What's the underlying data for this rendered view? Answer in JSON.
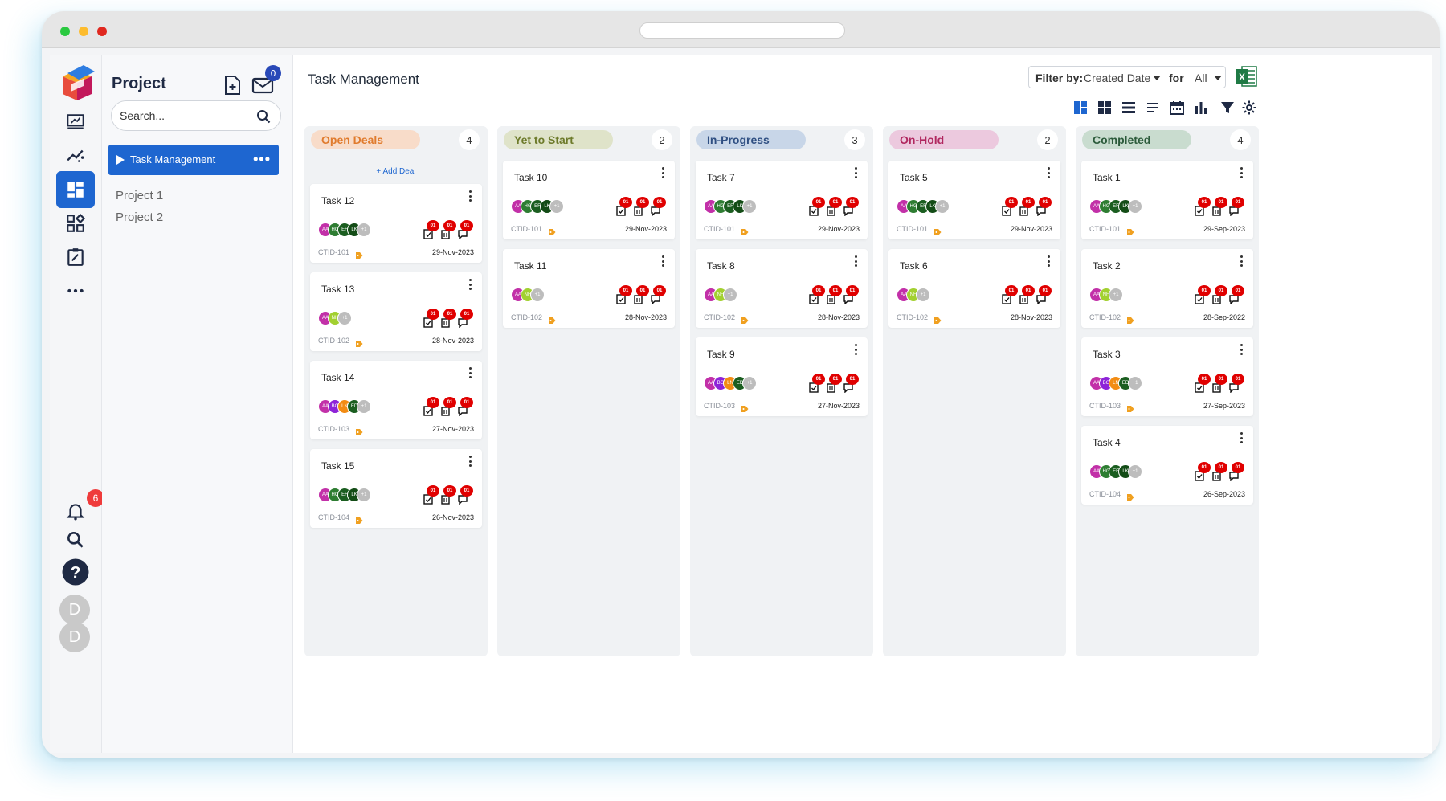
{
  "colors": {
    "accent": "#1e66d0",
    "badge_red": "#e00000",
    "mail_badge": "#2949b8",
    "excel_green": "#1f7a45"
  },
  "rail": {
    "icons": [
      "app-logo",
      "monitor-icon",
      "analytics-icon",
      "dashboard-icon",
      "widgets-icon",
      "task-edit-icon",
      "more-icon"
    ],
    "notification_count": "6",
    "users": [
      {
        "initial": "D"
      },
      {
        "initial": "D"
      }
    ]
  },
  "project_panel": {
    "title": "Project",
    "mail_count": "0",
    "search_placeholder": "Search...",
    "active_item": "Task Management",
    "items": [
      "Project 1",
      "Project 2"
    ]
  },
  "main": {
    "title": "Task Management",
    "filter": {
      "label": "Filter by:",
      "value": "Created Date",
      "for_label": "for",
      "for_value": "All"
    },
    "views": [
      "kanban-view-icon",
      "grid-view-icon",
      "list-view-icon",
      "compact-list-icon",
      "calendar-icon",
      "chart-icon",
      "filter-icon",
      "settings-icon"
    ]
  },
  "board": {
    "add_deal_label": "+ Add Deal",
    "columns": [
      {
        "name": "Open Deals",
        "count": "4",
        "pill_bg": "#f8dcc9",
        "pill_fg": "#e07b2d",
        "cards": [
          {
            "title": "Task 12",
            "ctid": "CTID-101",
            "date": "29-Nov-2023",
            "badges": [
              "01",
              "01",
              "01"
            ],
            "avatars": [
              [
                "AA",
                "#c230a8"
              ],
              [
                "HG",
                "#2e7d32"
              ],
              [
                "EF",
                "#1b5e20"
              ],
              [
                "LK",
                "#134c16"
              ],
              [
                "+1",
                "#bdbdbd"
              ]
            ]
          },
          {
            "title": "Task 13",
            "ctid": "CTID-102",
            "date": "28-Nov-2023",
            "badges": [
              "01",
              "01",
              "01"
            ],
            "avatars": [
              [
                "AA",
                "#c230a8"
              ],
              [
                "NH",
                "#a2d030"
              ],
              [
                "+1",
                "#bdbdbd"
              ]
            ]
          },
          {
            "title": "Task 14",
            "ctid": "CTID-103",
            "date": "27-Nov-2023",
            "badges": [
              "01",
              "01",
              "01"
            ],
            "avatars": [
              [
                "AA",
                "#c230a8"
              ],
              [
                "BG",
                "#8e24d8"
              ],
              [
                "LN",
                "#f28c14"
              ],
              [
                "ED",
                "#1b5e20"
              ],
              [
                "+1",
                "#bdbdbd"
              ]
            ]
          },
          {
            "title": "Task 15",
            "ctid": "CTID-104",
            "date": "26-Nov-2023",
            "badges": [
              "01",
              "01",
              "01"
            ],
            "avatars": [
              [
                "AA",
                "#c230a8"
              ],
              [
                "HG",
                "#2e7d32"
              ],
              [
                "EF",
                "#1b5e20"
              ],
              [
                "LK",
                "#134c16"
              ],
              [
                "+1",
                "#bdbdbd"
              ]
            ]
          }
        ]
      },
      {
        "name": "Yet to Start",
        "count": "2",
        "pill_bg": "#dfe3c9",
        "pill_fg": "#6d7a2a",
        "cards": [
          {
            "title": "Task 10",
            "ctid": "CTID-101",
            "date": "29-Nov-2023",
            "badges": [
              "01",
              "01",
              "01"
            ],
            "avatars": [
              [
                "AA",
                "#c230a8"
              ],
              [
                "HG",
                "#2e7d32"
              ],
              [
                "EF",
                "#1b5e20"
              ],
              [
                "LK",
                "#134c16"
              ],
              [
                "+1",
                "#bdbdbd"
              ]
            ]
          },
          {
            "title": "Task 11",
            "ctid": "CTID-102",
            "date": "28-Nov-2023",
            "badges": [
              "01",
              "01",
              "01"
            ],
            "avatars": [
              [
                "AA",
                "#c230a8"
              ],
              [
                "NH",
                "#a2d030"
              ],
              [
                "+1",
                "#bdbdbd"
              ]
            ]
          }
        ]
      },
      {
        "name": "In-Progress",
        "count": "3",
        "pill_bg": "#c8d6e8",
        "pill_fg": "#2f4f82",
        "cards": [
          {
            "title": "Task 7",
            "ctid": "CTID-101",
            "date": "29-Nov-2023",
            "badges": [
              "01",
              "01",
              "01"
            ],
            "avatars": [
              [
                "AA",
                "#c230a8"
              ],
              [
                "HG",
                "#2e7d32"
              ],
              [
                "EF",
                "#1b5e20"
              ],
              [
                "LK",
                "#134c16"
              ],
              [
                "+1",
                "#bdbdbd"
              ]
            ]
          },
          {
            "title": "Task 8",
            "ctid": "CTID-102",
            "date": "28-Nov-2023",
            "badges": [
              "01",
              "01",
              "01"
            ],
            "avatars": [
              [
                "AA",
                "#c230a8"
              ],
              [
                "NH",
                "#a2d030"
              ],
              [
                "+1",
                "#bdbdbd"
              ]
            ]
          },
          {
            "title": "Task 9",
            "ctid": "CTID-103",
            "date": "27-Nov-2023",
            "badges": [
              "01",
              "01",
              "01"
            ],
            "avatars": [
              [
                "AA",
                "#c230a8"
              ],
              [
                "BG",
                "#8e24d8"
              ],
              [
                "LN",
                "#f28c14"
              ],
              [
                "ED",
                "#1b5e20"
              ],
              [
                "+1",
                "#bdbdbd"
              ]
            ]
          }
        ]
      },
      {
        "name": "On-Hold",
        "count": "2",
        "pill_bg": "#ecc9de",
        "pill_fg": "#b0275f",
        "cards": [
          {
            "title": "Task 5",
            "ctid": "CTID-101",
            "date": "29-Nov-2023",
            "badges": [
              "01",
              "01",
              "01"
            ],
            "avatars": [
              [
                "AA",
                "#c230a8"
              ],
              [
                "HG",
                "#2e7d32"
              ],
              [
                "EF",
                "#1b5e20"
              ],
              [
                "LK",
                "#134c16"
              ],
              [
                "+1",
                "#bdbdbd"
              ]
            ]
          },
          {
            "title": "Task 6",
            "ctid": "CTID-102",
            "date": "28-Nov-2023",
            "badges": [
              "01",
              "01",
              "01"
            ],
            "avatars": [
              [
                "AA",
                "#c230a8"
              ],
              [
                "NH",
                "#a2d030"
              ],
              [
                "+1",
                "#bdbdbd"
              ]
            ]
          }
        ]
      },
      {
        "name": "Completed",
        "count": "4",
        "pill_bg": "#c9dccf",
        "pill_fg": "#2c5b3b",
        "cards": [
          {
            "title": "Task 1",
            "ctid": "CTID-101",
            "date": "29-Sep-2023",
            "badges": [
              "01",
              "01",
              "01"
            ],
            "avatars": [
              [
                "AA",
                "#c230a8"
              ],
              [
                "HG",
                "#2e7d32"
              ],
              [
                "EF",
                "#1b5e20"
              ],
              [
                "LK",
                "#134c16"
              ],
              [
                "+1",
                "#bdbdbd"
              ]
            ]
          },
          {
            "title": "Task 2",
            "ctid": "CTID-102",
            "date": "28-Sep-2022",
            "badges": [
              "01",
              "01",
              "01"
            ],
            "avatars": [
              [
                "AA",
                "#c230a8"
              ],
              [
                "NH",
                "#a2d030"
              ],
              [
                "+1",
                "#bdbdbd"
              ]
            ]
          },
          {
            "title": "Task 3",
            "ctid": "CTID-103",
            "date": "27-Sep-2023",
            "badges": [
              "01",
              "01",
              "01"
            ],
            "avatars": [
              [
                "AA",
                "#c230a8"
              ],
              [
                "BG",
                "#8e24d8"
              ],
              [
                "LN",
                "#f28c14"
              ],
              [
                "ED",
                "#1b5e20"
              ],
              [
                "+1",
                "#bdbdbd"
              ]
            ]
          },
          {
            "title": "Task 4",
            "ctid": "CTID-104",
            "date": "26-Sep-2023",
            "badges": [
              "01",
              "01",
              "01"
            ],
            "avatars": [
              [
                "AA",
                "#c230a8"
              ],
              [
                "HG",
                "#2e7d32"
              ],
              [
                "EF",
                "#1b5e20"
              ],
              [
                "LK",
                "#134c16"
              ],
              [
                "+1",
                "#bdbdbd"
              ]
            ]
          }
        ]
      }
    ]
  }
}
